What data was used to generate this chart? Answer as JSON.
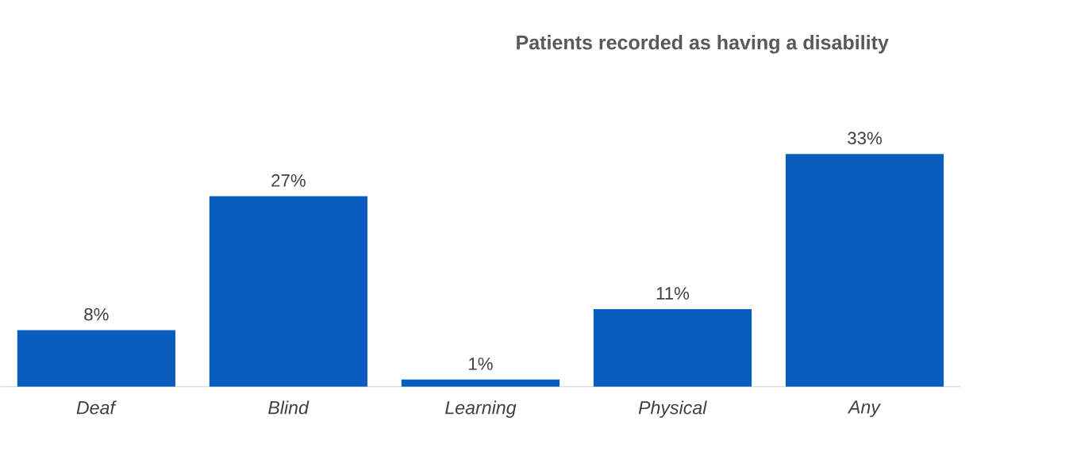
{
  "chart_data": {
    "type": "bar",
    "title": "Patients recorded as having a disability",
    "categories": [
      "*Deaf*",
      "*Blind*",
      "*Learning*",
      "*Physical*",
      "*Any*"
    ],
    "values": [
      8,
      27,
      1,
      11,
      33
    ],
    "value_labels": [
      "8%",
      "27%",
      "1%",
      "11%",
      "33%"
    ],
    "color": "#0a5dbe"
  }
}
